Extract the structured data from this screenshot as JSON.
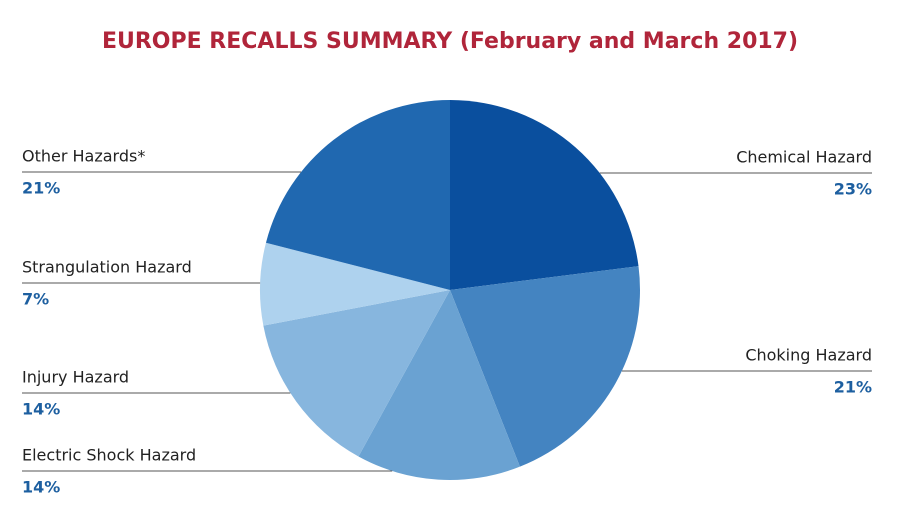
{
  "chart_data": {
    "type": "pie",
    "title": "EUROPE RECALLS SUMMARY (February and March 2017)",
    "categories": [
      "Chemical Hazard",
      "Choking Hazard",
      "Electric Shock Hazard",
      "Injury Hazard",
      "Strangulation Hazard",
      "Other Hazards*"
    ],
    "values": [
      23,
      21,
      14,
      14,
      7,
      21
    ],
    "value_labels": [
      "23%",
      "21%",
      "14%",
      "14%",
      "7%",
      "21%"
    ],
    "colors": [
      "#0a4f9e",
      "#4484c1",
      "#6aa2d2",
      "#87b6de",
      "#aed2ee",
      "#2068b0"
    ]
  }
}
